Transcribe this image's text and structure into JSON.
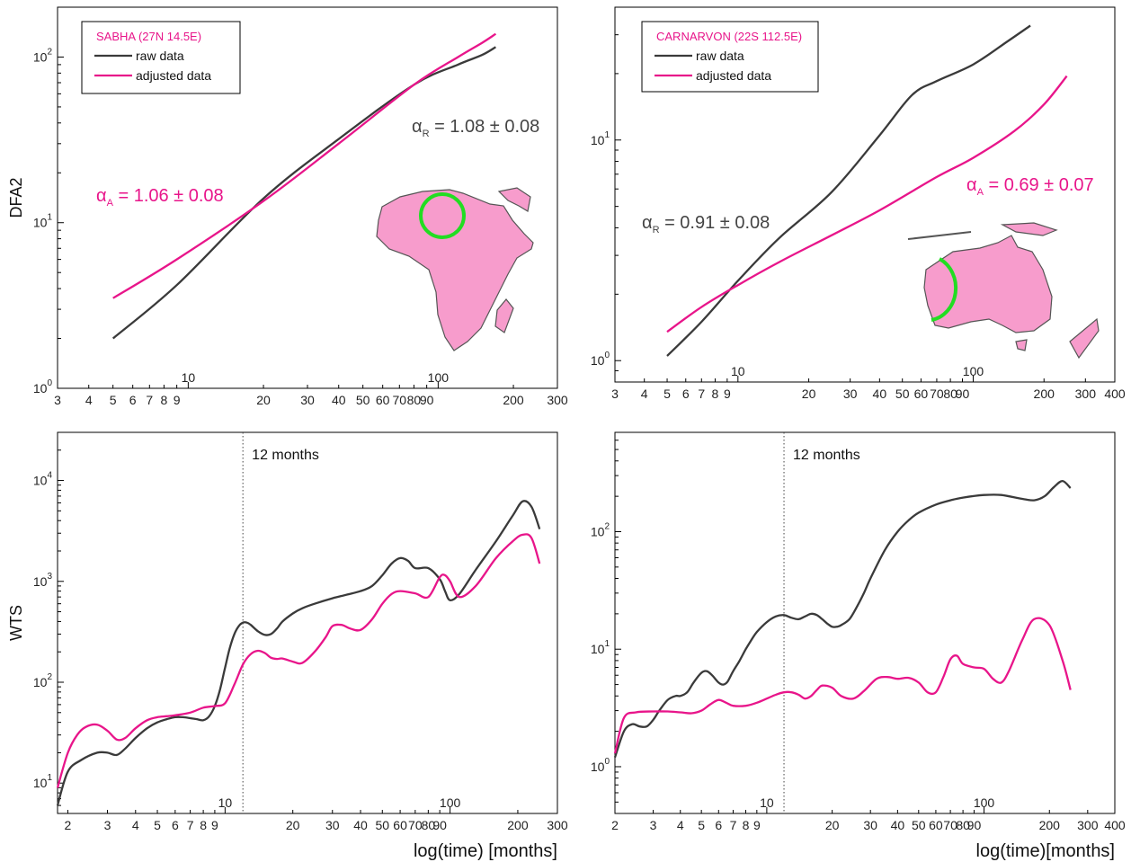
{
  "colors": {
    "raw": "#3a3a3a",
    "adjusted": "#e8158a",
    "land": "#f79ccc",
    "circle": "#22dd22"
  },
  "chart_data": [
    {
      "id": "dfa-sabha",
      "type": "line",
      "log_x": true,
      "log_y": true,
      "xlim": [
        3,
        300
      ],
      "ylim": [
        1,
        200
      ],
      "ylabel": "DFA2",
      "xlabel": "",
      "x_ticks": [
        "3",
        "4",
        "5",
        "6",
        "7",
        "8",
        "9",
        "20",
        "30",
        "40",
        "50",
        "60",
        "70",
        "80",
        "90",
        "200",
        "300"
      ],
      "x_decades": [
        "10",
        "100"
      ],
      "y_ticks": [
        {
          "base": "10",
          "exp": "0"
        },
        {
          "base": "10",
          "exp": "1"
        },
        {
          "base": "10",
          "exp": "2"
        }
      ],
      "legend": {
        "title": "SABHA (27N 14.5E)",
        "entries": [
          "raw data",
          "adjusted data"
        ]
      },
      "annotations": [
        {
          "greek": "α",
          "sub": "R",
          "text": " = 1.08 ± 0.08",
          "series": "raw"
        },
        {
          "greek": "α",
          "sub": "A",
          "text": " = 1.06 ± 0.08",
          "series": "adjusted"
        }
      ],
      "map": "africa",
      "series": [
        {
          "name": "raw data",
          "key": "raw",
          "x": [
            5,
            9,
            20,
            40,
            80,
            120,
            150,
            170
          ],
          "y": [
            2.0,
            4.2,
            14,
            32,
            68,
            90,
            103,
            115
          ]
        },
        {
          "name": "adjusted data",
          "key": "adjusted",
          "x": [
            5,
            9,
            20,
            40,
            80,
            120,
            150,
            170
          ],
          "y": [
            3.5,
            6.0,
            13.5,
            30,
            68,
            100,
            122,
            138
          ]
        }
      ]
    },
    {
      "id": "dfa-carnarvon",
      "type": "line",
      "log_x": true,
      "log_y": true,
      "xlim": [
        3,
        400
      ],
      "ylim": [
        0.8,
        40
      ],
      "ylabel": "",
      "xlabel": "",
      "x_ticks": [
        "3",
        "4",
        "5",
        "6",
        "7",
        "8",
        "9",
        "20",
        "30",
        "40",
        "50",
        "60",
        "70",
        "80",
        "90",
        "200",
        "300",
        "400"
      ],
      "x_decades": [
        "10",
        "100"
      ],
      "y_ticks": [
        {
          "base": "10",
          "exp": "0"
        },
        {
          "base": "10",
          "exp": "1"
        }
      ],
      "legend": {
        "title": "CARNARVON (22S 112.5E)",
        "entries": [
          "raw data",
          "adjusted data"
        ]
      },
      "annotations": [
        {
          "greek": "α",
          "sub": "R",
          "text": " = 0.91 ± 0.08",
          "series": "raw"
        },
        {
          "greek": "α",
          "sub": "A",
          "text": " = 0.69 ± 0.07",
          "series": "adjusted"
        }
      ],
      "map": "australia",
      "series": [
        {
          "name": "raw data",
          "key": "raw",
          "x": [
            5,
            7,
            10,
            15,
            25,
            40,
            55,
            70,
            100,
            140,
            175
          ],
          "y": [
            1.05,
            1.5,
            2.3,
            3.6,
            5.8,
            10.5,
            16,
            18.5,
            22,
            28,
            33
          ]
        },
        {
          "name": "adjusted data",
          "key": "adjusted",
          "x": [
            5,
            7,
            10,
            15,
            25,
            40,
            70,
            100,
            150,
            200,
            250
          ],
          "y": [
            1.35,
            1.75,
            2.2,
            2.8,
            3.7,
            4.8,
            6.8,
            8.3,
            11,
            14.5,
            19.5
          ]
        }
      ]
    },
    {
      "id": "wts-sabha",
      "type": "line",
      "log_x": true,
      "log_y": true,
      "xlim": [
        1.8,
        300
      ],
      "ylim": [
        5,
        30000
      ],
      "ylabel": "WTS",
      "xlabel": "log(time) [months]",
      "x_ticks": [
        "2",
        "3",
        "4",
        "5",
        "6",
        "7",
        "8",
        "9",
        "20",
        "30",
        "40",
        "50",
        "60",
        "70",
        "80",
        "90",
        "200",
        "300"
      ],
      "x_decades": [
        "10",
        "100"
      ],
      "y_ticks": [
        {
          "base": "10",
          "exp": "1"
        },
        {
          "base": "10",
          "exp": "2"
        },
        {
          "base": "10",
          "exp": "3"
        },
        {
          "base": "10",
          "exp": "4"
        }
      ],
      "vline": {
        "x": 12,
        "label": "12 months"
      },
      "series": [
        {
          "name": "raw data",
          "key": "raw",
          "x": [
            1.8,
            2,
            2.3,
            2.7,
            3,
            3.3,
            3.6,
            4,
            4.5,
            5,
            5.5,
            6,
            6.5,
            7,
            7.5,
            8,
            8.5,
            9,
            9.5,
            10,
            10.5,
            11,
            11.5,
            12,
            12.5,
            13,
            14,
            15,
            16,
            17,
            18,
            20,
            22,
            25,
            30,
            35,
            40,
            45,
            50,
            55,
            60,
            65,
            70,
            80,
            90,
            95,
            100,
            110,
            130,
            160,
            190,
            210,
            230,
            250
          ],
          "y": [
            6,
            13,
            17,
            20,
            20,
            19,
            22,
            28,
            35,
            40,
            43,
            45,
            45,
            44,
            43,
            42,
            46,
            58,
            85,
            140,
            220,
            300,
            360,
            390,
            390,
            370,
            320,
            295,
            300,
            340,
            400,
            480,
            540,
            600,
            680,
            740,
            800,
            900,
            1150,
            1500,
            1700,
            1600,
            1350,
            1350,
            1050,
            800,
            650,
            750,
            1300,
            2500,
            4500,
            6200,
            5500,
            3300
          ]
        },
        {
          "name": "adjusted data",
          "key": "adjusted",
          "x": [
            1.8,
            2,
            2.2,
            2.4,
            2.7,
            3,
            3.3,
            3.6,
            4,
            4.5,
            5,
            5.5,
            6,
            7,
            8,
            9,
            10,
            11,
            12,
            13,
            14,
            15,
            16,
            17,
            18,
            20,
            22,
            25,
            28,
            30,
            33,
            36,
            40,
            45,
            50,
            55,
            60,
            70,
            80,
            90,
            95,
            100,
            110,
            130,
            160,
            190,
            210,
            230,
            250
          ],
          "y": [
            9,
            20,
            30,
            36,
            38,
            33,
            27,
            28,
            35,
            42,
            45,
            46,
            47,
            50,
            56,
            58,
            62,
            95,
            150,
            190,
            205,
            195,
            175,
            170,
            172,
            160,
            155,
            200,
            280,
            360,
            370,
            340,
            330,
            420,
            600,
            750,
            800,
            760,
            700,
            1100,
            1150,
            1000,
            700,
            900,
            1700,
            2500,
            2900,
            2700,
            1500
          ]
        }
      ]
    },
    {
      "id": "wts-carnarvon",
      "type": "line",
      "log_x": true,
      "log_y": true,
      "xlim": [
        2,
        400
      ],
      "ylim": [
        0.4,
        700
      ],
      "ylabel": "",
      "xlabel": "log(time)[months]",
      "x_ticks": [
        "2",
        "3",
        "4",
        "5",
        "6",
        "7",
        "8",
        "9",
        "20",
        "30",
        "40",
        "50",
        "60",
        "70",
        "80",
        "90",
        "200",
        "300",
        "400"
      ],
      "x_decades": [
        "10",
        "100"
      ],
      "y_ticks": [
        {
          "base": "10",
          "exp": "0"
        },
        {
          "base": "10",
          "exp": "1"
        },
        {
          "base": "10",
          "exp": "2"
        }
      ],
      "vline": {
        "x": 12,
        "label": "12 months"
      },
      "series": [
        {
          "name": "raw data",
          "key": "raw",
          "x": [
            2,
            2.2,
            2.4,
            2.6,
            2.8,
            3,
            3.2,
            3.5,
            3.8,
            4,
            4.3,
            4.6,
            5,
            5.3,
            5.6,
            6,
            6.3,
            6.6,
            7,
            7.5,
            8,
            8.5,
            9,
            10,
            11,
            12,
            13,
            14,
            15,
            16,
            17,
            18,
            19,
            20,
            21,
            22,
            24,
            26,
            28,
            30,
            35,
            40,
            45,
            50,
            60,
            70,
            80,
            100,
            120,
            150,
            170,
            190,
            210,
            230,
            250
          ],
          "y": [
            1.2,
            2.0,
            2.3,
            2.2,
            2.2,
            2.5,
            3.0,
            3.7,
            4.0,
            4.0,
            4.3,
            5.2,
            6.3,
            6.5,
            6.0,
            5.2,
            5.0,
            5.3,
            6.5,
            8.0,
            10,
            12,
            14,
            17,
            19,
            19.5,
            18.5,
            18,
            19,
            20,
            19.5,
            18,
            16.5,
            15.5,
            15.5,
            16,
            18,
            23,
            30,
            40,
            70,
            100,
            125,
            145,
            170,
            185,
            195,
            205,
            205,
            190,
            185,
            200,
            240,
            270,
            235
          ]
        },
        {
          "name": "adjusted data",
          "key": "adjusted",
          "x": [
            2,
            2.2,
            2.5,
            3,
            3.5,
            4,
            4.5,
            5,
            5.5,
            6,
            6.5,
            7,
            8,
            9,
            10,
            11,
            12,
            13,
            14,
            15,
            16,
            17,
            18,
            20,
            22,
            25,
            28,
            32,
            36,
            40,
            45,
            50,
            55,
            60,
            65,
            70,
            75,
            80,
            90,
            100,
            110,
            120,
            130,
            150,
            170,
            200,
            230,
            250
          ],
          "y": [
            1.3,
            2.6,
            2.9,
            2.95,
            2.95,
            2.9,
            2.85,
            3.0,
            3.4,
            3.7,
            3.5,
            3.3,
            3.3,
            3.5,
            3.8,
            4.1,
            4.3,
            4.3,
            4.1,
            3.8,
            4.0,
            4.5,
            4.9,
            4.7,
            4.0,
            3.8,
            4.4,
            5.6,
            5.8,
            5.6,
            5.7,
            5.2,
            4.3,
            4.3,
            5.8,
            8.2,
            8.8,
            7.5,
            7.0,
            6.8,
            5.6,
            5.2,
            6.5,
            12,
            18,
            16,
            8,
            4.5
          ]
        }
      ]
    }
  ]
}
